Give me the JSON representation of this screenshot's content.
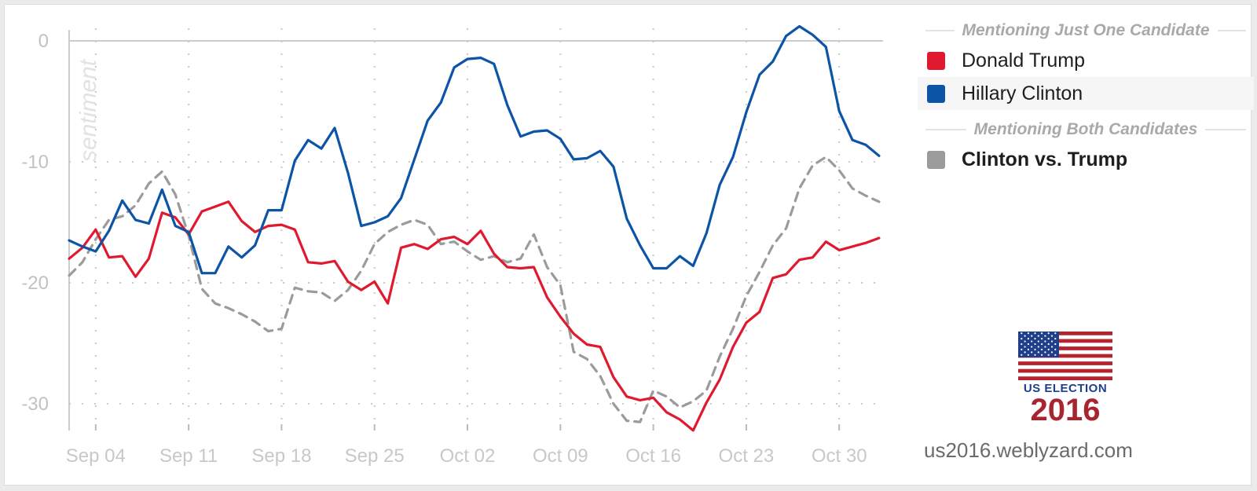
{
  "chart_data": {
    "type": "line",
    "ylabel": "sentiment",
    "ylim": [
      -32.5,
      2.5
    ],
    "yticks": [
      {
        "value": 0,
        "label": "0"
      },
      {
        "value": -10,
        "label": "-10"
      },
      {
        "value": -20,
        "label": "-20"
      },
      {
        "value": -30,
        "label": "-30"
      }
    ],
    "xticks": [
      {
        "x": 3,
        "label": "Sep 04"
      },
      {
        "x": 10,
        "label": "Sep 11"
      },
      {
        "x": 17,
        "label": "Sep 18"
      },
      {
        "x": 24,
        "label": "Sep 25"
      },
      {
        "x": 31,
        "label": "Oct 02"
      },
      {
        "x": 38,
        "label": "Oct 09"
      },
      {
        "x": 45,
        "label": "Oct 16"
      },
      {
        "x": 52,
        "label": "Oct 23"
      },
      {
        "x": 59,
        "label": "Oct 30"
      }
    ],
    "grid": true,
    "series": [
      {
        "name": "Donald Trump",
        "color": "#e1192f",
        "dashed": false,
        "points": [
          [
            1,
            -18.0
          ],
          [
            2,
            -17.1
          ],
          [
            3,
            -15.6
          ],
          [
            4,
            -17.9
          ],
          [
            5,
            -17.8
          ],
          [
            6,
            -19.5
          ],
          [
            7,
            -18.0
          ],
          [
            8,
            -14.2
          ],
          [
            9,
            -14.6
          ],
          [
            10,
            -16.0
          ],
          [
            11,
            -14.1
          ],
          [
            12,
            -13.7
          ],
          [
            13,
            -13.3
          ],
          [
            14,
            -14.9
          ],
          [
            15,
            -15.8
          ],
          [
            16,
            -15.3
          ],
          [
            17,
            -15.2
          ],
          [
            18,
            -15.6
          ],
          [
            19,
            -18.3
          ],
          [
            20,
            -18.4
          ],
          [
            21,
            -18.2
          ],
          [
            22,
            -19.9
          ],
          [
            23,
            -20.6
          ],
          [
            24,
            -19.9
          ],
          [
            25,
            -21.7
          ],
          [
            26,
            -17.1
          ],
          [
            27,
            -16.8
          ],
          [
            28,
            -17.2
          ],
          [
            29,
            -16.4
          ],
          [
            30,
            -16.2
          ],
          [
            31,
            -16.8
          ],
          [
            32,
            -15.7
          ],
          [
            33,
            -17.6
          ],
          [
            34,
            -18.7
          ],
          [
            35,
            -18.8
          ],
          [
            36,
            -18.7
          ],
          [
            37,
            -21.2
          ],
          [
            38,
            -22.8
          ],
          [
            39,
            -24.2
          ],
          [
            40,
            -25.1
          ],
          [
            41,
            -25.3
          ],
          [
            42,
            -27.8
          ],
          [
            43,
            -29.4
          ],
          [
            44,
            -29.7
          ],
          [
            45,
            -29.5
          ],
          [
            46,
            -30.7
          ],
          [
            47,
            -31.3
          ],
          [
            48,
            -32.2
          ],
          [
            49,
            -29.9
          ],
          [
            50,
            -28.0
          ],
          [
            51,
            -25.3
          ],
          [
            52,
            -23.3
          ],
          [
            53,
            -22.4
          ],
          [
            54,
            -19.6
          ],
          [
            55,
            -19.3
          ],
          [
            56,
            -18.1
          ],
          [
            57,
            -17.9
          ],
          [
            58,
            -16.6
          ],
          [
            59,
            -17.3
          ],
          [
            60,
            -17.0
          ],
          [
            61,
            -16.7
          ],
          [
            62,
            -16.3
          ]
        ]
      },
      {
        "name": "Hillary Clinton",
        "color": "#0c54a6",
        "dashed": false,
        "points": [
          [
            1,
            -16.5
          ],
          [
            2,
            -17.0
          ],
          [
            3,
            -17.4
          ],
          [
            4,
            -15.7
          ],
          [
            5,
            -13.2
          ],
          [
            6,
            -14.8
          ],
          [
            7,
            -15.1
          ],
          [
            8,
            -12.3
          ],
          [
            9,
            -15.3
          ],
          [
            10,
            -15.8
          ],
          [
            11,
            -19.2
          ],
          [
            12,
            -19.2
          ],
          [
            13,
            -17.0
          ],
          [
            14,
            -17.9
          ],
          [
            15,
            -16.9
          ],
          [
            16,
            -14.0
          ],
          [
            17,
            -14.0
          ],
          [
            18,
            -9.9
          ],
          [
            19,
            -8.2
          ],
          [
            20,
            -8.9
          ],
          [
            21,
            -7.2
          ],
          [
            22,
            -10.9
          ],
          [
            23,
            -15.3
          ],
          [
            24,
            -15.0
          ],
          [
            25,
            -14.5
          ],
          [
            26,
            -13.0
          ],
          [
            27,
            -9.8
          ],
          [
            28,
            -6.6
          ],
          [
            29,
            -5.1
          ],
          [
            30,
            -2.2
          ],
          [
            31,
            -1.5
          ],
          [
            32,
            -1.4
          ],
          [
            33,
            -1.9
          ],
          [
            34,
            -5.3
          ],
          [
            35,
            -7.9
          ],
          [
            36,
            -7.5
          ],
          [
            37,
            -7.4
          ],
          [
            38,
            -8.1
          ],
          [
            39,
            -9.8
          ],
          [
            40,
            -9.7
          ],
          [
            41,
            -9.1
          ],
          [
            42,
            -10.4
          ],
          [
            43,
            -14.7
          ],
          [
            44,
            -16.9
          ],
          [
            45,
            -18.8
          ],
          [
            46,
            -18.8
          ],
          [
            47,
            -17.8
          ],
          [
            48,
            -18.6
          ],
          [
            49,
            -15.9
          ],
          [
            50,
            -11.9
          ],
          [
            51,
            -9.6
          ],
          [
            52,
            -5.9
          ],
          [
            53,
            -2.8
          ],
          [
            54,
            -1.7
          ],
          [
            55,
            0.4
          ],
          [
            56,
            1.2
          ],
          [
            57,
            0.5
          ],
          [
            58,
            -0.5
          ],
          [
            59,
            -5.8
          ],
          [
            60,
            -8.2
          ],
          [
            61,
            -8.6
          ],
          [
            62,
            -9.5
          ]
        ]
      },
      {
        "name": "Clinton vs. Trump",
        "color": "#9b9b9b",
        "dashed": true,
        "points": [
          [
            1,
            -19.4
          ],
          [
            2,
            -18.3
          ],
          [
            3,
            -16.4
          ],
          [
            4,
            -14.8
          ],
          [
            5,
            -14.5
          ],
          [
            6,
            -13.6
          ],
          [
            7,
            -11.8
          ],
          [
            8,
            -10.8
          ],
          [
            9,
            -12.7
          ],
          [
            10,
            -16.1
          ],
          [
            11,
            -20.5
          ],
          [
            12,
            -21.7
          ],
          [
            13,
            -22.1
          ],
          [
            14,
            -22.6
          ],
          [
            15,
            -23.2
          ],
          [
            16,
            -24.0
          ],
          [
            17,
            -23.8
          ],
          [
            18,
            -20.4
          ],
          [
            19,
            -20.7
          ],
          [
            20,
            -20.8
          ],
          [
            21,
            -21.5
          ],
          [
            22,
            -20.6
          ],
          [
            23,
            -19.0
          ],
          [
            24,
            -16.8
          ],
          [
            25,
            -15.8
          ],
          [
            26,
            -15.2
          ],
          [
            27,
            -14.8
          ],
          [
            28,
            -15.2
          ],
          [
            29,
            -16.8
          ],
          [
            30,
            -16.6
          ],
          [
            31,
            -17.4
          ],
          [
            32,
            -18.1
          ],
          [
            33,
            -17.8
          ],
          [
            34,
            -18.3
          ],
          [
            35,
            -18.0
          ],
          [
            36,
            -16.0
          ],
          [
            37,
            -18.7
          ],
          [
            38,
            -20.2
          ],
          [
            39,
            -25.7
          ],
          [
            40,
            -26.3
          ],
          [
            41,
            -27.7
          ],
          [
            42,
            -30.0
          ],
          [
            43,
            -31.4
          ],
          [
            44,
            -31.5
          ],
          [
            45,
            -28.9
          ],
          [
            46,
            -29.4
          ],
          [
            47,
            -30.3
          ],
          [
            48,
            -29.8
          ],
          [
            49,
            -28.9
          ],
          [
            50,
            -26.1
          ],
          [
            51,
            -23.8
          ],
          [
            52,
            -21.1
          ],
          [
            53,
            -19.1
          ],
          [
            54,
            -16.9
          ],
          [
            55,
            -15.5
          ],
          [
            56,
            -12.2
          ],
          [
            57,
            -10.3
          ],
          [
            58,
            -9.6
          ],
          [
            59,
            -10.7
          ],
          [
            60,
            -12.2
          ],
          [
            61,
            -12.8
          ],
          [
            62,
            -13.3
          ]
        ]
      }
    ]
  },
  "legend": {
    "heading_single": "Mentioning Just One Candidate",
    "heading_both": "Mentioning Both Candidates",
    "items": [
      {
        "label": "Donald Trump",
        "color": "#e1192f"
      },
      {
        "label": "Hillary Clinton",
        "color": "#0c54a6"
      },
      {
        "label": "Clinton vs. Trump",
        "color": "#9b9b9b"
      }
    ]
  },
  "logo": {
    "label": "US ELECTION",
    "year": "2016",
    "icon": "us-flag-icon"
  },
  "footer": {
    "url": "us2016.weblyzard.com"
  }
}
